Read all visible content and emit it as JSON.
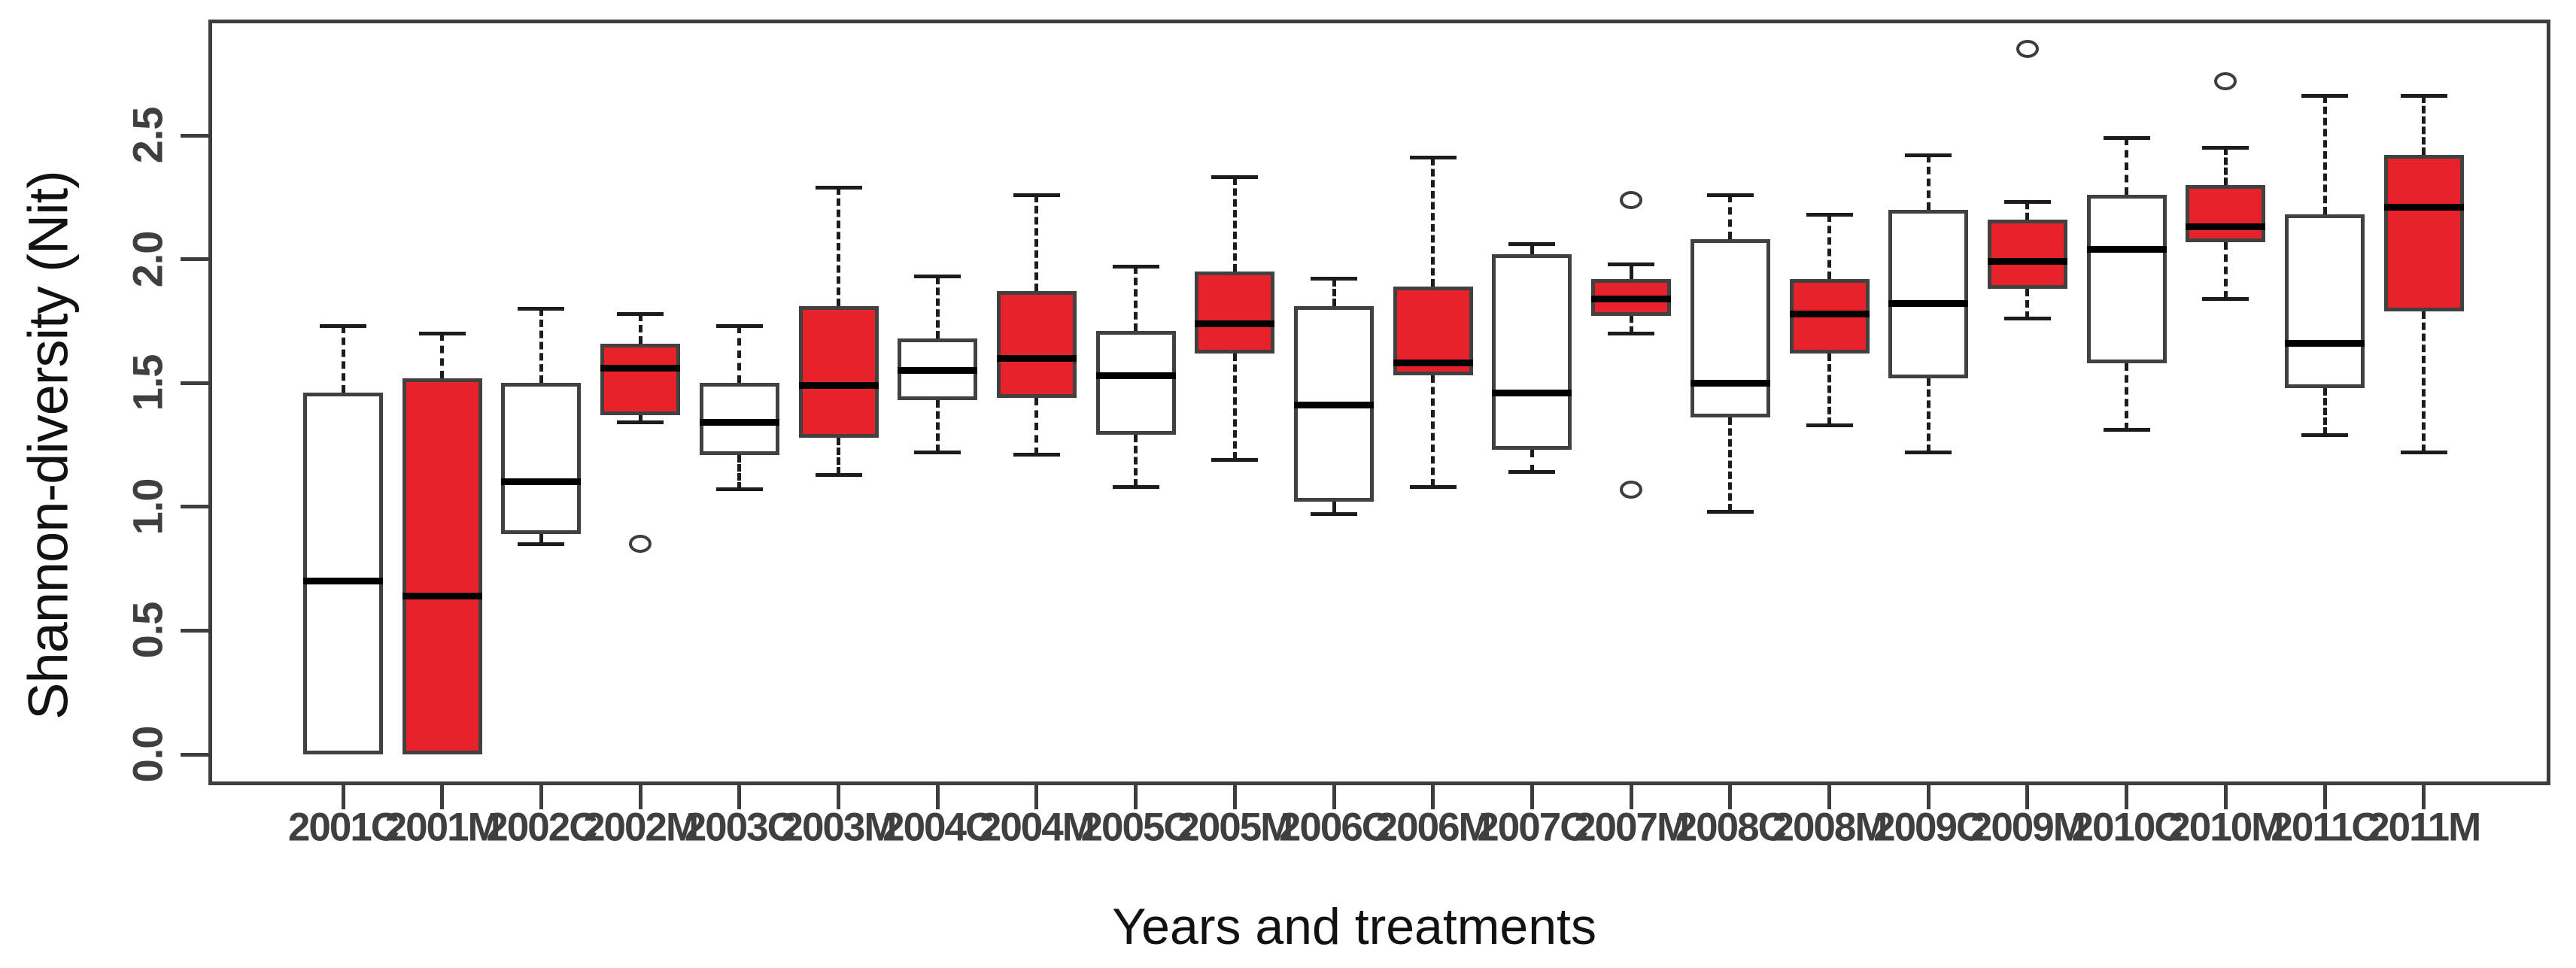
{
  "chart_data": {
    "type": "boxplot",
    "title": "",
    "xlabel": "Years and treatments",
    "ylabel": "Shannon-diversity (Nit)",
    "ylim": [
      -0.12,
      2.97
    ],
    "yticks": [
      "0.0",
      "0.5",
      "1.0",
      "1.5",
      "2.0",
      "2.5"
    ],
    "grid": "off",
    "legend": "none",
    "colors": {
      "control_fill": "#ffffff",
      "treatment_fill": "#e8222a",
      "box_border": "#414141",
      "median": "#000000",
      "whisker": "#1c1c1c",
      "axis": "#3d3d3d",
      "tick_label": "#3f3f3f"
    },
    "series": [
      {
        "label": "2001C",
        "group": "control",
        "whisker_low": 0.0,
        "q1": 0.0,
        "median": 0.7,
        "q3": 1.46,
        "whisker_high": 1.73,
        "outliers": []
      },
      {
        "label": "2001M",
        "group": "treatment",
        "whisker_low": 0.0,
        "q1": 0.0,
        "median": 0.64,
        "q3": 1.52,
        "whisker_high": 1.7,
        "outliers": []
      },
      {
        "label": "2002C",
        "group": "control",
        "whisker_low": 0.85,
        "q1": 0.89,
        "median": 1.1,
        "q3": 1.5,
        "whisker_high": 1.8,
        "outliers": []
      },
      {
        "label": "2002M",
        "group": "treatment",
        "whisker_low": 1.34,
        "q1": 1.37,
        "median": 1.56,
        "q3": 1.66,
        "whisker_high": 1.78,
        "outliers": [
          0.85
        ]
      },
      {
        "label": "2003C",
        "group": "control",
        "whisker_low": 1.07,
        "q1": 1.21,
        "median": 1.34,
        "q3": 1.5,
        "whisker_high": 1.73,
        "outliers": []
      },
      {
        "label": "2003M",
        "group": "treatment",
        "whisker_low": 1.13,
        "q1": 1.28,
        "median": 1.49,
        "q3": 1.81,
        "whisker_high": 2.29,
        "outliers": []
      },
      {
        "label": "2004C",
        "group": "control",
        "whisker_low": 1.22,
        "q1": 1.43,
        "median": 1.55,
        "q3": 1.68,
        "whisker_high": 1.93,
        "outliers": []
      },
      {
        "label": "2004M",
        "group": "treatment",
        "whisker_low": 1.21,
        "q1": 1.44,
        "median": 1.6,
        "q3": 1.87,
        "whisker_high": 2.26,
        "outliers": []
      },
      {
        "label": "2005C",
        "group": "control",
        "whisker_low": 1.08,
        "q1": 1.29,
        "median": 1.53,
        "q3": 1.71,
        "whisker_high": 1.97,
        "outliers": []
      },
      {
        "label": "2005M",
        "group": "treatment",
        "whisker_low": 1.19,
        "q1": 1.62,
        "median": 1.74,
        "q3": 1.95,
        "whisker_high": 2.33,
        "outliers": []
      },
      {
        "label": "2006C",
        "group": "control",
        "whisker_low": 0.97,
        "q1": 1.02,
        "median": 1.41,
        "q3": 1.81,
        "whisker_high": 1.92,
        "outliers": []
      },
      {
        "label": "2006M",
        "group": "treatment",
        "whisker_low": 1.08,
        "q1": 1.53,
        "median": 1.58,
        "q3": 1.89,
        "whisker_high": 2.41,
        "outliers": []
      },
      {
        "label": "2007C",
        "group": "control",
        "whisker_low": 1.14,
        "q1": 1.23,
        "median": 1.46,
        "q3": 2.02,
        "whisker_high": 2.06,
        "outliers": []
      },
      {
        "label": "2007M",
        "group": "treatment",
        "whisker_low": 1.7,
        "q1": 1.77,
        "median": 1.84,
        "q3": 1.92,
        "whisker_high": 1.98,
        "outliers": [
          2.24,
          1.07
        ]
      },
      {
        "label": "2008C",
        "group": "control",
        "whisker_low": 0.98,
        "q1": 1.36,
        "median": 1.5,
        "q3": 2.08,
        "whisker_high": 2.26,
        "outliers": []
      },
      {
        "label": "2008M",
        "group": "treatment",
        "whisker_low": 1.33,
        "q1": 1.62,
        "median": 1.78,
        "q3": 1.92,
        "whisker_high": 2.18,
        "outliers": []
      },
      {
        "label": "2009C",
        "group": "control",
        "whisker_low": 1.22,
        "q1": 1.52,
        "median": 1.82,
        "q3": 2.2,
        "whisker_high": 2.42,
        "outliers": []
      },
      {
        "label": "2009M",
        "group": "treatment",
        "whisker_low": 1.76,
        "q1": 1.88,
        "median": 1.99,
        "q3": 2.16,
        "whisker_high": 2.23,
        "outliers": [
          2.85
        ]
      },
      {
        "label": "2010C",
        "group": "control",
        "whisker_low": 1.31,
        "q1": 1.58,
        "median": 2.04,
        "q3": 2.26,
        "whisker_high": 2.49,
        "outliers": []
      },
      {
        "label": "2010M",
        "group": "treatment",
        "whisker_low": 1.84,
        "q1": 2.07,
        "median": 2.13,
        "q3": 2.3,
        "whisker_high": 2.45,
        "outliers": [
          2.72
        ]
      },
      {
        "label": "2011C",
        "group": "control",
        "whisker_low": 1.29,
        "q1": 1.48,
        "median": 1.66,
        "q3": 2.18,
        "whisker_high": 2.66,
        "outliers": []
      },
      {
        "label": "2011M",
        "group": "treatment",
        "whisker_low": 1.22,
        "q1": 1.79,
        "median": 2.21,
        "q3": 2.42,
        "whisker_high": 2.66,
        "outliers": []
      }
    ]
  }
}
